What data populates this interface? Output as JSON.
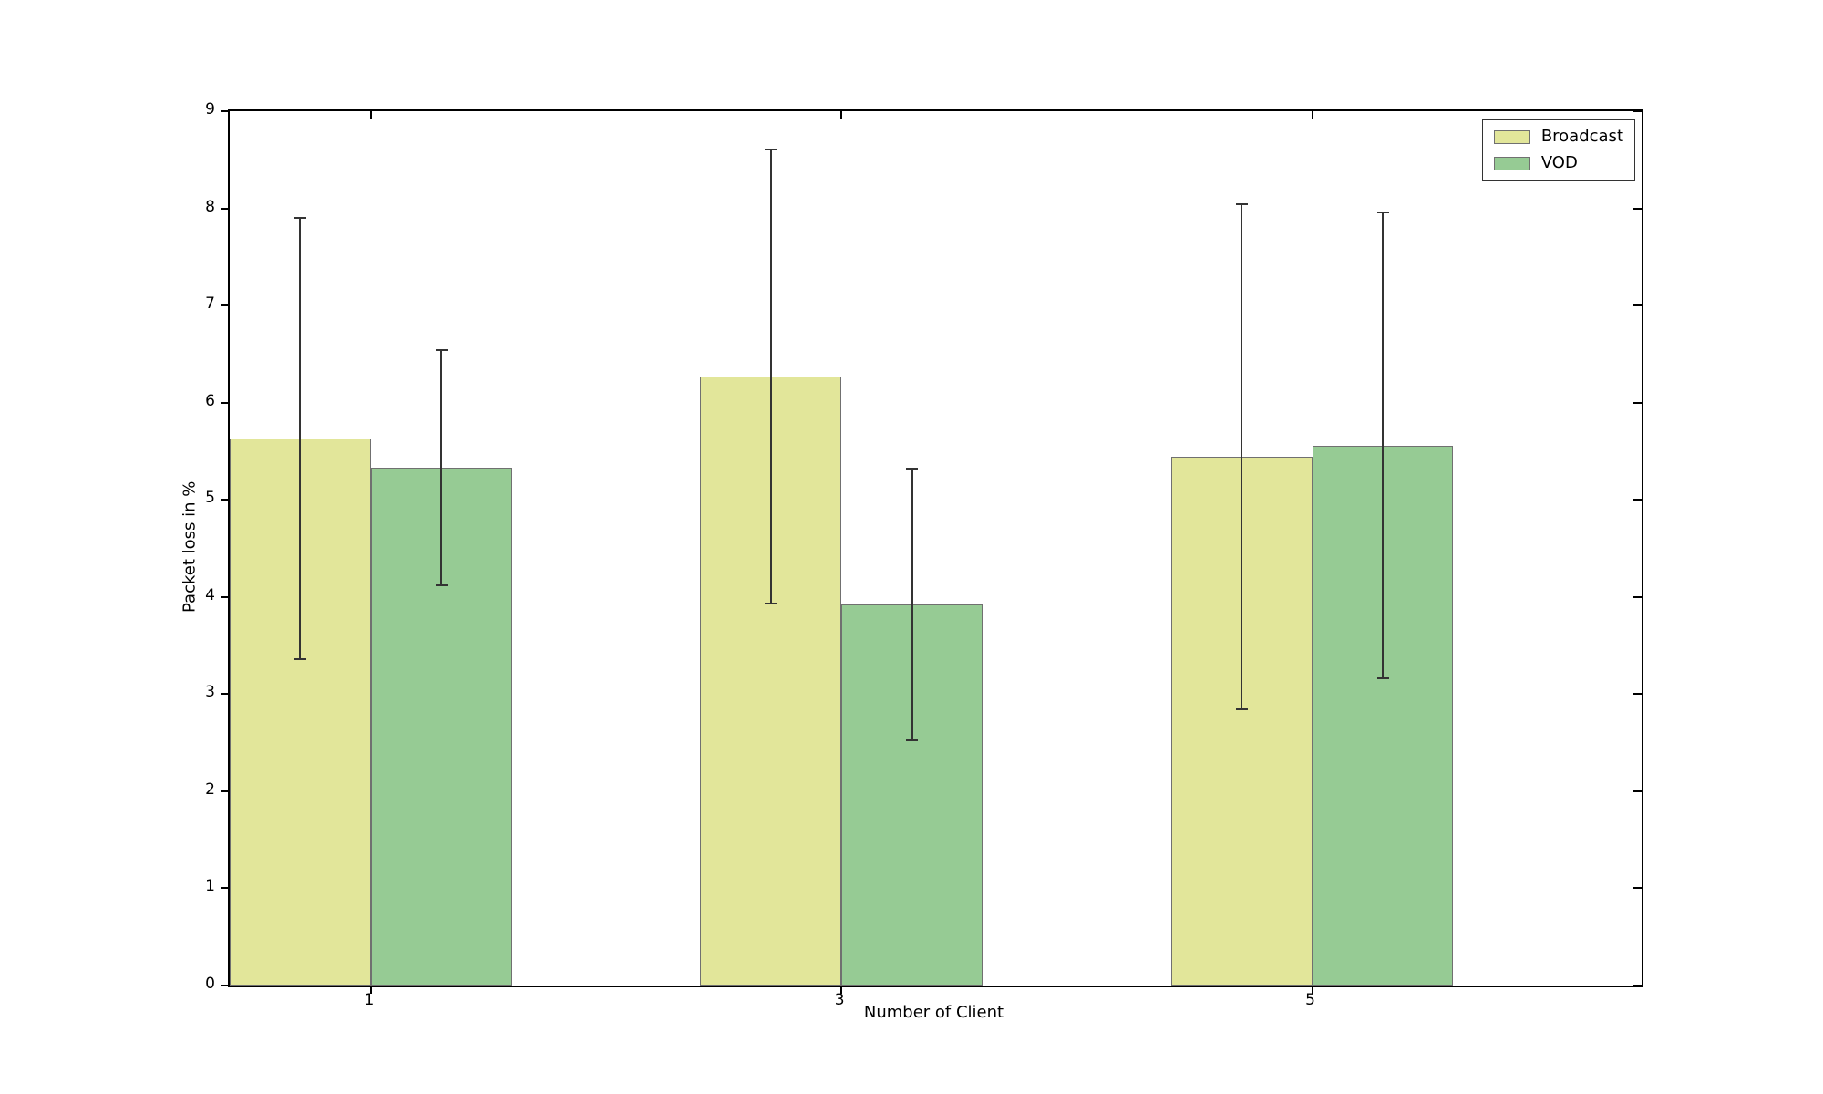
{
  "figure": {
    "background": "#ffffff",
    "plot_border_color": "#000000"
  },
  "chart_data": {
    "type": "bar",
    "title": "",
    "xlabel": "Number of Client",
    "ylabel": "Packet loss in %",
    "categories": [
      "1",
      "3",
      "5"
    ],
    "ylim": [
      0,
      9
    ],
    "yticks": [
      0,
      1,
      2,
      3,
      4,
      5,
      6,
      7,
      8,
      9
    ],
    "grid": false,
    "legend_position": "upper right",
    "bar_edge_color": "#707070",
    "error_bar_color": "#333333",
    "series": [
      {
        "name": "Broadcast",
        "color": "#e2e69a",
        "values": [
          5.63,
          6.27,
          5.44
        ],
        "errors": [
          2.27,
          2.34,
          2.6
        ],
        "error_low": [
          3.36,
          3.93,
          2.84
        ],
        "error_high": [
          7.9,
          8.61,
          8.04
        ]
      },
      {
        "name": "VOD",
        "color": "#96cb94",
        "values": [
          5.33,
          3.92,
          5.56
        ],
        "errors": [
          1.21,
          1.4,
          2.4
        ],
        "error_low": [
          4.12,
          2.52,
          3.16
        ],
        "error_high": [
          6.54,
          5.32,
          7.96
        ]
      }
    ]
  }
}
